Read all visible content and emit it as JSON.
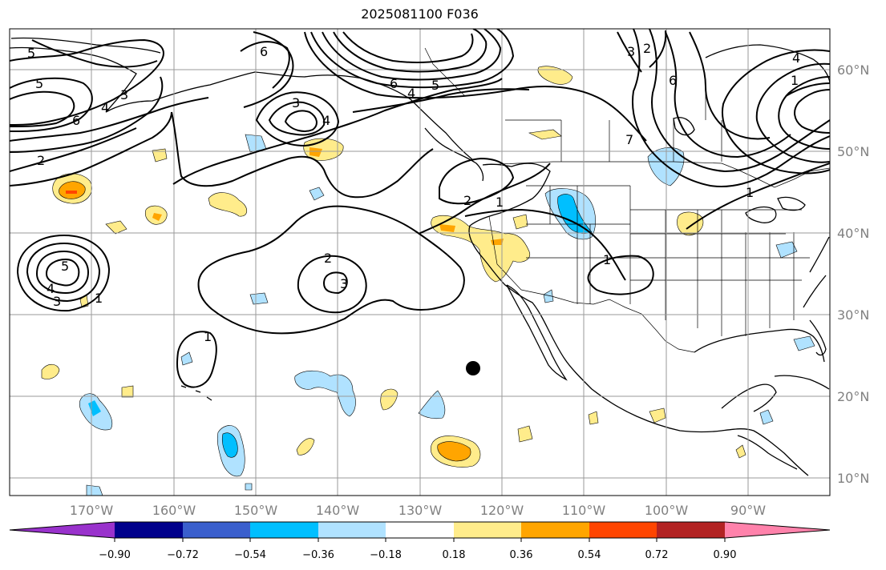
{
  "title": "2025081100 F036",
  "lat_labels": [
    "60°N",
    "50°N",
    "40°N",
    "30°N",
    "20°N",
    "10°N"
  ],
  "lon_labels": [
    "170°W",
    "160°W",
    "150°W",
    "140°W",
    "130°W",
    "120°W",
    "110°W",
    "100°W",
    "90°W"
  ],
  "colorbar": {
    "ticks": [
      "−0.90",
      "−0.72",
      "−0.54",
      "−0.36",
      "−0.18",
      "0.18",
      "0.36",
      "0.54",
      "0.72",
      "0.90"
    ],
    "colors": [
      "#9932cc",
      "#00008b",
      "#3a5fcd",
      "#00bfff",
      "#b0e2ff",
      "#ffffff",
      "#ffec8b",
      "#ffa500",
      "#ff4500",
      "#b22222",
      "#ff82ab"
    ]
  },
  "contour_labels": [
    "5",
    "5",
    "6",
    "4",
    "3",
    "2",
    "3",
    "4",
    "6",
    "5",
    "4",
    "6",
    "3",
    "2",
    "4",
    "1",
    "2",
    "1",
    "2",
    "3",
    "5",
    "4",
    "3",
    "1",
    "1",
    "1",
    "6",
    "7",
    "1"
  ],
  "marker": {
    "label": "point",
    "color": "#000000"
  }
}
